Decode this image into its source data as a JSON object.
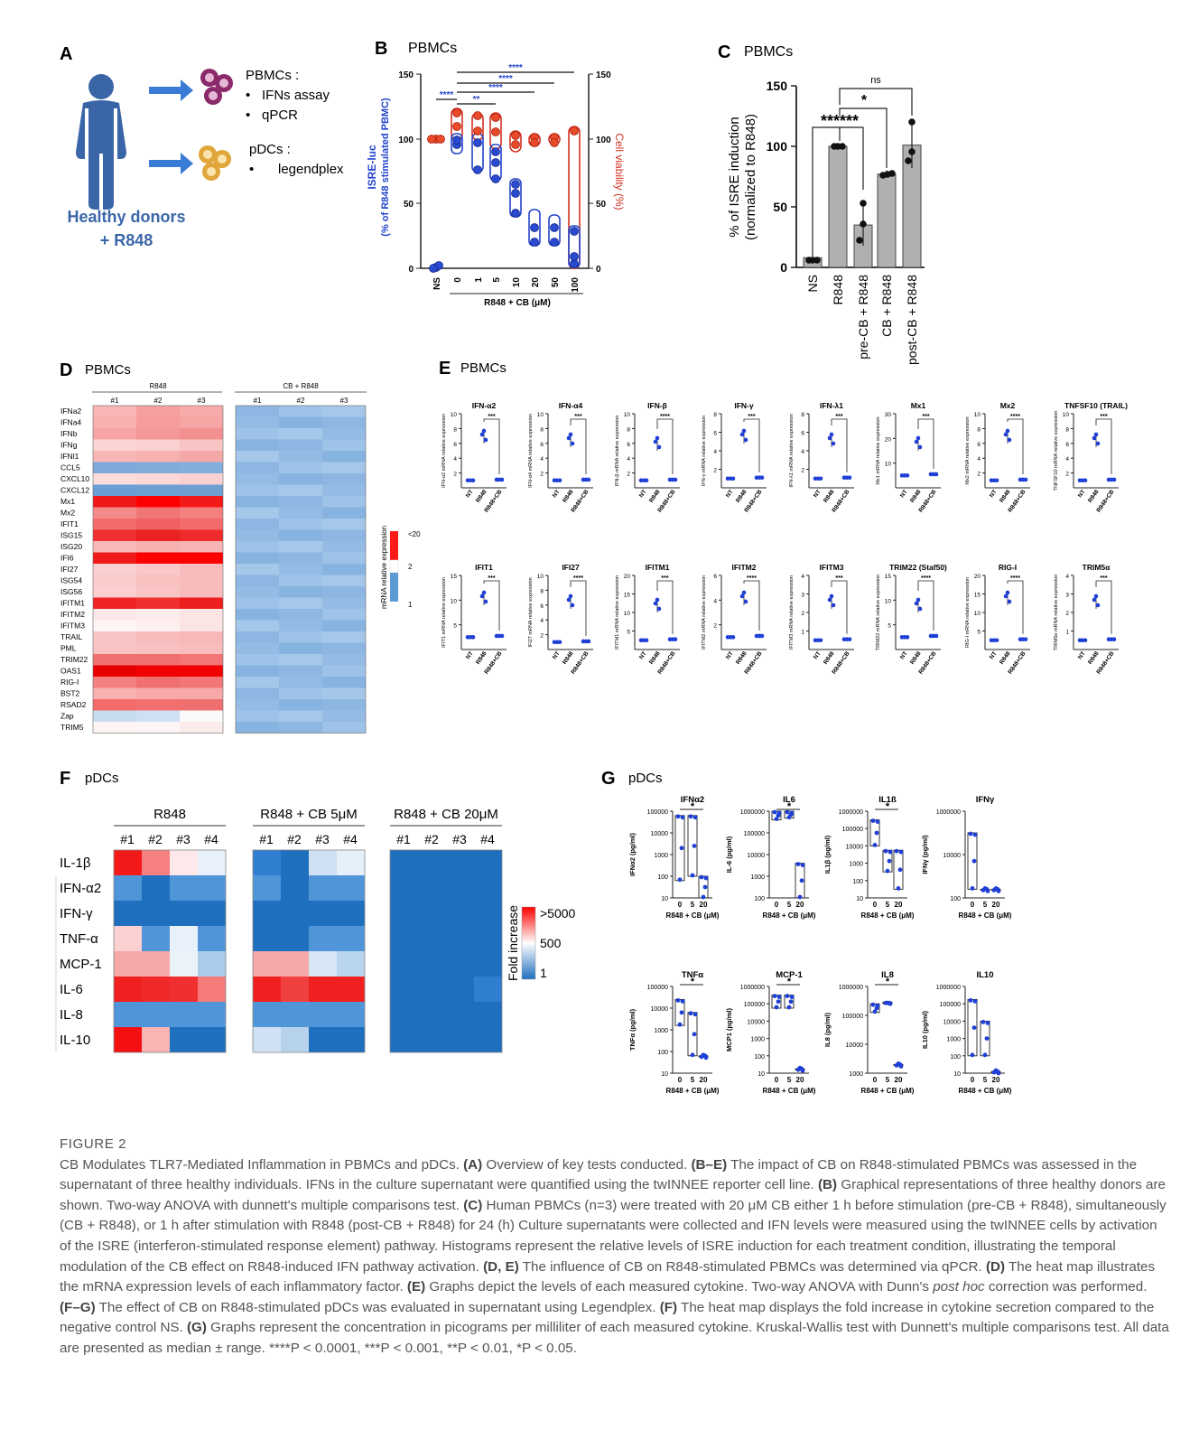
{
  "panelA": {
    "label": "A",
    "pbmc_title": "PBMCs :",
    "pbmc_items": [
      "IFNs assay",
      "qPCR"
    ],
    "pdc_title": "pDCs :",
    "pdc_items": [
      "legendplex"
    ],
    "donors_line1": "Healthy donors",
    "donors_line2": "+ R848"
  },
  "panelB": {
    "label": "B",
    "title": "PBMCs",
    "left_axis_label_1": "ISRE-luc",
    "left_axis_label_2": "(% of R848 stimulated PBMC)",
    "right_axis_label": "Cell viability (%)",
    "yticks": [
      "0",
      "50",
      "100",
      "150"
    ],
    "categories": [
      "NS",
      "0",
      "1",
      "5",
      "10",
      "20",
      "50",
      "100"
    ],
    "xlabel": "R848 + CB (μM)",
    "sig": [
      "****",
      "**",
      "****",
      "****",
      "****"
    ]
  },
  "panelC": {
    "label": "C",
    "title": "PBMCs",
    "ylabel_1": "% of ISRE induction",
    "ylabel_2": "(normalized to R848)",
    "yticks": [
      "0",
      "50",
      "100",
      "150"
    ],
    "categories": [
      "NS",
      "R848",
      "pre-CB + R848",
      "CB + R848",
      "post-CB + R848"
    ],
    "sig": [
      "******",
      "*",
      "ns"
    ]
  },
  "panelD": {
    "label": "D",
    "title": "PBMCs",
    "group1": "R848",
    "group2": "CB + R848",
    "cols": [
      "#1",
      "#2",
      "#3"
    ],
    "genes": [
      "IFNa2",
      "IFNa4",
      "IFNb",
      "IFNg",
      "IFNl1",
      "CCL5",
      "CXCL10",
      "CXCL12",
      "Mx1",
      "Mx2",
      "IFIT1",
      "ISG15",
      "ISG20",
      "IFI6",
      "IFI27",
      "ISG54",
      "ISG56",
      "IFITM1",
      "IFITM2",
      "IFITM3",
      "TRAIL",
      "PML",
      "TRIM22",
      "OAS1",
      "RIG-I",
      "BST2",
      "RSAD2",
      "Zap",
      "TRIM5"
    ],
    "legend_title": "mRNA relative expression",
    "legend_ticks": [
      "<20",
      "2",
      "1"
    ]
  },
  "panelE": {
    "label": "E",
    "title": "PBMCs",
    "xcats": [
      "NT",
      "R848",
      "R848+CB"
    ],
    "row1": [
      {
        "title": "IFN-α2",
        "ylabel": "IFN-α2 mRNA relative expression",
        "yticks": [
          "2",
          "4",
          "6",
          "8",
          "10"
        ],
        "sig": "***"
      },
      {
        "title": "IFN-α4",
        "ylabel": "IFN-α4 mRNA relative expression",
        "yticks": [
          "2",
          "4",
          "6",
          "8",
          "10"
        ],
        "sig": "***"
      },
      {
        "title": "IFN-β",
        "ylabel": "IFN-β mRNA relative expression",
        "yticks": [
          "2",
          "4",
          "6",
          "8",
          "10"
        ],
        "sig": "****"
      },
      {
        "title": "IFN-γ",
        "ylabel": "IFN-γ mRNA relative expression",
        "yticks": [
          "2",
          "4",
          "6",
          "8"
        ],
        "sig": "***"
      },
      {
        "title": "IFN-λ1",
        "ylabel": "IFN-λ1 mRNA relative expression",
        "yticks": [
          "2",
          "4",
          "6",
          "8"
        ],
        "sig": "***"
      },
      {
        "title": "Mx1",
        "ylabel": "Mx1 mRNA relative expression",
        "yticks": [
          "10",
          "20",
          "30"
        ],
        "sig": "***"
      },
      {
        "title": "Mx2",
        "ylabel": "Mx2 mRNA relative expression",
        "yticks": [
          "2",
          "4",
          "6",
          "8",
          "10"
        ],
        "sig": "****"
      },
      {
        "title": "TNFSF10 (TRAIL)",
        "ylabel": "TNFSF10 mRNA relative expression",
        "yticks": [
          "2",
          "4",
          "6",
          "8",
          "10"
        ],
        "sig": "***"
      }
    ],
    "row2": [
      {
        "title": "IFIT1",
        "ylabel": "IFIT1 mRNA relative expression",
        "yticks": [
          "5",
          "10",
          "15"
        ],
        "sig": "***"
      },
      {
        "title": "IFI27",
        "ylabel": "IFI27 mRNA relative expression",
        "yticks": [
          "2",
          "4",
          "6",
          "8",
          "10"
        ],
        "sig": "****"
      },
      {
        "title": "IFITM1",
        "ylabel": "IFITM1 mRNA relative expression",
        "yticks": [
          "5",
          "10",
          "15",
          "20"
        ],
        "sig": "***"
      },
      {
        "title": "IFITM2",
        "ylabel": "IFITM2 mRNA relative expression",
        "yticks": [
          "2",
          "4",
          "6"
        ],
        "sig": "****"
      },
      {
        "title": "IFITM3",
        "ylabel": "IFITM3 mRNA relative expression",
        "yticks": [
          "1",
          "2",
          "3",
          "4"
        ],
        "sig": "***"
      },
      {
        "title": "TRIM22 (Staf50)",
        "ylabel": "TRIM22 mRNA relative expression",
        "yticks": [
          "5",
          "10",
          "15"
        ],
        "sig": "****"
      },
      {
        "title": "RIG-I",
        "ylabel": "RIG-I mRNA relative expression",
        "yticks": [
          "5",
          "10",
          "15",
          "20"
        ],
        "sig": "****"
      },
      {
        "title": "TRIM5α",
        "ylabel": "TRIM5α mRNA relative expression",
        "yticks": [
          "1",
          "2",
          "3",
          "4"
        ],
        "sig": "***"
      }
    ]
  },
  "panelF": {
    "label": "F",
    "title": "pDCs",
    "groups": [
      "R848",
      "R848 + CB 5μM",
      "R848 + CB 20μM"
    ],
    "cols": [
      "#1",
      "#2",
      "#3",
      "#4"
    ],
    "rows": [
      "IL-1β",
      "IFN-α2",
      "IFN-γ",
      "TNF-α",
      "MCP-1",
      "IL-6",
      "IL-8",
      "IL-10"
    ],
    "legend_title": "Fold increase",
    "legend_ticks": [
      ">5000",
      "500",
      "1"
    ]
  },
  "panelG": {
    "label": "G",
    "title": "pDCs",
    "xticks": [
      "0",
      "5",
      "20"
    ],
    "xlabel": "R848 + CB (μM)",
    "row1": [
      {
        "title": "IFNα2",
        "ylabel": "IFNα2 (pg/ml)",
        "yticks": [
          "10",
          "100",
          "1000",
          "10000",
          "100000"
        ],
        "sig": "*"
      },
      {
        "title": "IL6",
        "ylabel": "IL-6 (pg/ml)",
        "yticks": [
          "100",
          "1000",
          "10000",
          "100000",
          "1000000"
        ],
        "sig": "*"
      },
      {
        "title": "IL1ß",
        "ylabel": "IL1β (pg/ml)",
        "yticks": [
          "10",
          "100",
          "1000",
          "10000",
          "100000",
          "1000000"
        ],
        "sig": "*"
      },
      {
        "title": "IFNγ",
        "ylabel": "IFNγ (pg/ml)",
        "yticks": [
          "100",
          "10000",
          "1000000"
        ],
        "sig": ""
      }
    ],
    "row2": [
      {
        "title": "TNFα",
        "ylabel": "TNFα (pg/ml)",
        "yticks": [
          "10",
          "100",
          "1000",
          "10000",
          "100000"
        ],
        "sig": "*"
      },
      {
        "title": "MCP-1",
        "ylabel": "MCP1 (pg/ml)",
        "yticks": [
          "10",
          "100",
          "1000",
          "10000",
          "100000",
          "1000000"
        ],
        "sig": "*"
      },
      {
        "title": "IL8",
        "ylabel": "IL8 (pg/ml)",
        "yticks": [
          "1000",
          "10000",
          "100000",
          "1000000"
        ],
        "sig": "*"
      },
      {
        "title": "IL10",
        "ylabel": "IL10 (pg/ml)",
        "yticks": [
          "10",
          "100",
          "1000",
          "10000",
          "100000",
          "1000000"
        ],
        "sig": ""
      }
    ]
  },
  "caption": {
    "fig_label": "FIGURE 2",
    "t1": "CB Modulates TLR7-Mediated Inflammation in PBMCs and pDCs. ",
    "b1": "(A)",
    "t2": " Overview of key tests conducted. ",
    "b2": "(B–E)",
    "t3": " The impact of CB on R848-stimulated PBMCs was assessed in the supernatant of three healthy individuals. IFNs in the culture supernatant were quantified using the twINNEE reporter cell line. ",
    "b3": "(B)",
    "t4": " Graphical representations of three healthy donors are shown. Two-way ANOVA with dunnett's multiple comparisons test. ",
    "b4": "(C)",
    "t5": " Human PBMCs (n=3) were treated with 20 μM CB either 1 h before stimulation (pre-CB + R848), simultaneously (CB + R848), or 1 h after stimulation with R848 (post-CB + R848) for 24 (h) Culture supernatants were collected and IFN levels were measured using the twINNEE cells by activation of the ISRE (interferon-stimulated response element) pathway. Histograms represent the relative levels of ISRE induction for each treatment condition, illustrating the temporal modulation of the CB effect on R848-induced IFN pathway activation. ",
    "b5": "(D, E)",
    "t6": " The influence of CB on R848-stimulated PBMCs was determined via qPCR. ",
    "b6": "(D)",
    "t7": " The heat map illustrates the mRNA expression levels of each inflammatory factor. ",
    "b7": "(E)",
    "t8": " Graphs depict the levels of each measured cytokine. Two-way ANOVA with Dunn's ",
    "i8": "post hoc",
    "t9": " correction was performed. ",
    "b9": "(F–G)",
    "t10": " The effect of CB on R848-stimulated pDCs was evaluated in supernatant using Legendplex. ",
    "b10": "(F)",
    "t11": " The heat map displays the fold increase in cytokine secretion compared to the negative control NS. ",
    "b11": "(G)",
    "t12": " Graphs represent the concentration in picograms per milliliter of each measured cytokine. Kruskal-Wallis test with Dunnett's multiple comparisons test. All data are presented as median ± range. ****P < 0.0001, ***P < 0.001, **P < 0.01, *P < 0.05."
  }
}
